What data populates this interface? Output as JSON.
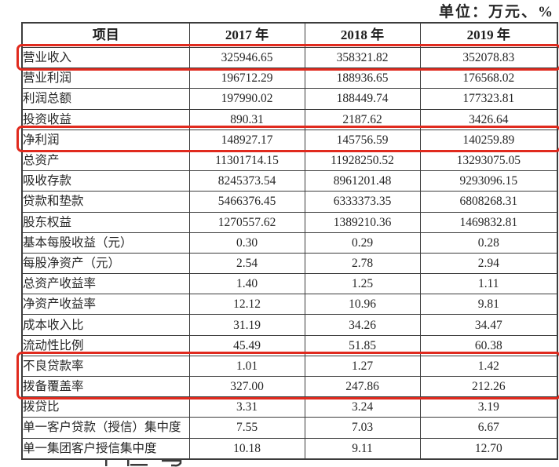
{
  "unit_label": "单位：万元、%",
  "colors": {
    "highlight_box": "#e02a1e",
    "table_border": "#3c3c3c",
    "text": "#262626"
  },
  "table": {
    "columns": [
      "项目",
      "2017 年",
      "2018 年",
      "2019 年"
    ],
    "rows": [
      {
        "label": "营业收入",
        "values": [
          "325946.65",
          "358321.82",
          "352078.83"
        ],
        "highlighted": true
      },
      {
        "label": "营业利润",
        "values": [
          "196712.29",
          "188936.65",
          "176568.02"
        ],
        "highlighted": false
      },
      {
        "label": "利润总额",
        "values": [
          "197990.02",
          "188449.74",
          "177323.81"
        ],
        "highlighted": false
      },
      {
        "label": "投资收益",
        "values": [
          "890.31",
          "2187.62",
          "3426.64"
        ],
        "highlighted": false
      },
      {
        "label": "净利润",
        "values": [
          "148927.17",
          "145756.59",
          "140259.89"
        ],
        "highlighted": true
      },
      {
        "label": "总资产",
        "values": [
          "11301714.15",
          "11928250.52",
          "13293075.05"
        ],
        "highlighted": false
      },
      {
        "label": "吸收存款",
        "values": [
          "8245373.54",
          "8961201.48",
          "9293096.15"
        ],
        "highlighted": false
      },
      {
        "label": "贷款和垫款",
        "values": [
          "5466376.45",
          "6333373.35",
          "6808268.31"
        ],
        "highlighted": false
      },
      {
        "label": "股东权益",
        "values": [
          "1270557.62",
          "1389210.36",
          "1469832.81"
        ],
        "highlighted": false
      },
      {
        "label": "基本每股收益（元）",
        "values": [
          "0.30",
          "0.29",
          "0.28"
        ],
        "highlighted": false
      },
      {
        "label": "每股净资产（元）",
        "values": [
          "2.54",
          "2.78",
          "2.94"
        ],
        "highlighted": false
      },
      {
        "label": "总资产收益率",
        "values": [
          "1.40",
          "1.25",
          "1.11"
        ],
        "highlighted": false
      },
      {
        "label": "净资产收益率",
        "values": [
          "12.12",
          "10.96",
          "9.81"
        ],
        "highlighted": false
      },
      {
        "label": "成本收入比",
        "values": [
          "31.19",
          "34.26",
          "34.47"
        ],
        "highlighted": false
      },
      {
        "label": "流动性比例",
        "values": [
          "45.49",
          "51.85",
          "60.38"
        ],
        "highlighted": false
      },
      {
        "label": "不良贷款率",
        "values": [
          "1.01",
          "1.27",
          "1.42"
        ],
        "highlighted": true
      },
      {
        "label": "拨备覆盖率",
        "values": [
          "327.00",
          "247.86",
          "212.26"
        ],
        "highlighted": true
      },
      {
        "label": "拨贷比",
        "values": [
          "3.31",
          "3.24",
          "3.19"
        ],
        "highlighted": false
      },
      {
        "label": "单一客户贷款（授信）集中度",
        "values": [
          "7.55",
          "7.03",
          "6.67"
        ],
        "highlighted": false
      },
      {
        "label": "单一集团客户授信集中度",
        "values": [
          "10.18",
          "9.11",
          "12.70"
        ],
        "highlighted": false
      }
    ]
  }
}
